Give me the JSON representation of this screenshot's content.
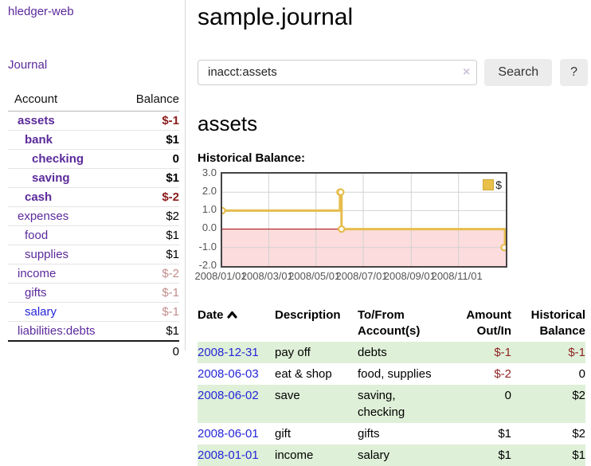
{
  "app": {
    "brand": "hledger-web",
    "nav_journal": "Journal"
  },
  "header": {
    "title": "sample.journal"
  },
  "search": {
    "value": "inacct:assets",
    "clear_icon": "×",
    "button_label": "Search",
    "help_label": "?"
  },
  "account_page": {
    "heading": "assets",
    "chart_label": "Historical Balance:"
  },
  "colors": {
    "link_purple": "#5b2a9b",
    "link_blue": "#2626d8",
    "negative_strong": "#8b1a1a",
    "negative_soft": "#c38c8c",
    "negative_table": "#8f2424",
    "row_stripe_green": "#dff0d8",
    "chart_line_gold": "#e6bd4d",
    "chart_negative_fill": "#fcdcdc",
    "chart_zero_line": "#a40000"
  },
  "sidebar": {
    "headers": {
      "account": "Account",
      "balance": "Balance"
    },
    "accounts": [
      {
        "name": "assets",
        "depth": 1,
        "balance": "$-1",
        "bold": true,
        "neg": "strong",
        "link": "purple"
      },
      {
        "name": "bank",
        "depth": 2,
        "balance": "$1",
        "bold": true,
        "neg": "",
        "link": "purple"
      },
      {
        "name": "checking",
        "depth": 3,
        "balance": "0",
        "bold": true,
        "neg": "",
        "link": "purple"
      },
      {
        "name": "saving",
        "depth": 3,
        "balance": "$1",
        "bold": true,
        "neg": "",
        "link": "purple"
      },
      {
        "name": "cash",
        "depth": 2,
        "balance": "$-2",
        "bold": true,
        "neg": "strong",
        "link": "purple"
      },
      {
        "name": "expenses",
        "depth": 1,
        "balance": "$2",
        "bold": false,
        "neg": "",
        "link": "purple"
      },
      {
        "name": "food",
        "depth": 2,
        "balance": "$1",
        "bold": false,
        "neg": "",
        "link": "purple"
      },
      {
        "name": "supplies",
        "depth": 2,
        "balance": "$1",
        "bold": false,
        "neg": "",
        "link": "purple"
      },
      {
        "name": "income",
        "depth": 1,
        "balance": "$-2",
        "bold": false,
        "neg": "soft",
        "link": "purple"
      },
      {
        "name": "gifts",
        "depth": 2,
        "balance": "$-1",
        "bold": false,
        "neg": "soft",
        "link": "purple"
      },
      {
        "name": "salary",
        "depth": 2,
        "balance": "$-1",
        "bold": false,
        "neg": "soft",
        "link": "blue"
      },
      {
        "name": "liabilities:debts",
        "depth": 1,
        "balance": "$1",
        "bold": false,
        "neg": "",
        "link": "purple"
      }
    ],
    "total": "0"
  },
  "chart_data": {
    "type": "line",
    "step": true,
    "title": "Historical Balance",
    "legend": [
      {
        "label": "$",
        "color": "#e9c04a"
      }
    ],
    "legend_position": "top-right",
    "grid": true,
    "x_range": [
      "2008-01-01",
      "2009-01-01"
    ],
    "ylim": [
      -2,
      3
    ],
    "y_ticks": [
      3.0,
      2.0,
      1.0,
      0.0,
      -1.0,
      -2.0
    ],
    "x_ticks": [
      {
        "date": "2008-03-01",
        "label": "2008/03/01"
      },
      {
        "date": "2008-05-01",
        "label": "2008/05/01"
      },
      {
        "date": "2008-07-01",
        "label": "2008/07/01"
      },
      {
        "date": "2008-09-01",
        "label": "2008/09/01"
      },
      {
        "date": "2008-11-01",
        "label": "2008/11/01"
      }
    ],
    "x_tick_first": {
      "date": "2008-01-01",
      "label": "2008/01/01"
    },
    "series": [
      {
        "name": "$",
        "points": [
          {
            "date": "2008-01-01",
            "value": 1
          },
          {
            "date": "2008-06-01",
            "value": 2
          },
          {
            "date": "2008-06-02",
            "value": 2
          },
          {
            "date": "2008-06-03",
            "value": 0
          },
          {
            "date": "2008-12-31",
            "value": -1
          }
        ]
      }
    ]
  },
  "register": {
    "headers": {
      "date": "Date",
      "description": "Description",
      "accounts": "To/From Account(s)",
      "amount": "Amount Out/In",
      "historical": "Historical Balance"
    },
    "rows": [
      {
        "date": "2008-12-31",
        "description": "pay off",
        "accounts": "debts",
        "amount": "$-1",
        "balance": "$-1"
      },
      {
        "date": "2008-06-03",
        "description": "eat & shop",
        "accounts": "food, supplies",
        "amount": "$-2",
        "balance": "0"
      },
      {
        "date": "2008-06-02",
        "description": "save",
        "accounts": "saving, checking",
        "amount": "0",
        "balance": "$2"
      },
      {
        "date": "2008-06-01",
        "description": "gift",
        "accounts": "gifts",
        "amount": "$1",
        "balance": "$2"
      },
      {
        "date": "2008-01-01",
        "description": "income",
        "accounts": "salary",
        "amount": "$1",
        "balance": "$1"
      }
    ]
  }
}
